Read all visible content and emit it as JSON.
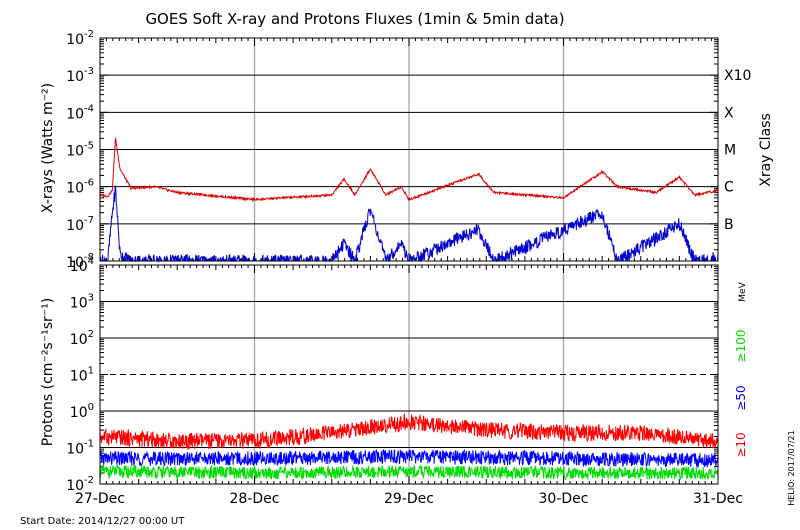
{
  "chart_data": [
    {
      "type": "line",
      "title": "GOES Soft X-ray and Protons Fluxes   (1min & 5min data)",
      "ylabel": "X-rays (Watts m⁻²)",
      "yscale": "log",
      "ylim": [
        1e-08,
        0.01
      ],
      "yticks": [
        {
          "base": "10",
          "exp": "-8"
        },
        {
          "base": "10",
          "exp": "-7"
        },
        {
          "base": "10",
          "exp": "-6"
        },
        {
          "base": "10",
          "exp": "-5"
        },
        {
          "base": "10",
          "exp": "-4"
        },
        {
          "base": "10",
          "exp": "-3"
        },
        {
          "base": "10",
          "exp": "-2"
        }
      ],
      "right_axis_label": "Xray Class",
      "xray_classes": [
        {
          "label": "B",
          "value": 1e-07
        },
        {
          "label": "C",
          "value": 1e-06
        },
        {
          "label": "M",
          "value": 1e-05
        },
        {
          "label": "X",
          "value": 0.0001
        },
        {
          "label": "X10",
          "value": 0.001
        }
      ],
      "x": [
        "2014-12-27",
        "2014-12-28",
        "2014-12-29",
        "2014-12-30",
        "2014-12-31"
      ],
      "series": [
        {
          "color": "#e00000",
          "points": [
            [
              0,
              6e-07
            ],
            [
              0.05,
              5.5e-07
            ],
            [
              0.08,
              8e-07
            ],
            [
              0.1,
              2e-05
            ],
            [
              0.13,
              3e-06
            ],
            [
              0.2,
              9e-07
            ],
            [
              0.35,
              1e-06
            ],
            [
              0.5,
              7e-07
            ],
            [
              1,
              4.5e-07
            ],
            [
              1.5,
              6e-07
            ],
            [
              1.58,
              1.6e-06
            ],
            [
              1.65,
              6e-07
            ],
            [
              1.75,
              3e-06
            ],
            [
              1.85,
              6e-07
            ],
            [
              1.95,
              1e-06
            ],
            [
              2,
              4.5e-07
            ],
            [
              2.2,
              9e-07
            ],
            [
              2.45,
              2.2e-06
            ],
            [
              2.55,
              7e-07
            ],
            [
              3,
              5e-07
            ],
            [
              3.25,
              2.5e-06
            ],
            [
              3.35,
              1e-06
            ],
            [
              3.6,
              7e-07
            ],
            [
              3.75,
              1.8e-06
            ],
            [
              3.85,
              6e-07
            ],
            [
              4,
              8e-07
            ]
          ]
        },
        {
          "color": "#0000d0",
          "points": [
            [
              0,
              1e-08
            ],
            [
              0.05,
              1e-08
            ],
            [
              0.08,
              2e-07
            ],
            [
              0.1,
              9e-07
            ],
            [
              0.13,
              1.5e-08
            ],
            [
              0.2,
              1e-08
            ],
            [
              0.75,
              1e-08
            ],
            [
              1.5,
              1e-08
            ],
            [
              1.58,
              3e-08
            ],
            [
              1.65,
              1e-08
            ],
            [
              1.75,
              2.5e-07
            ],
            [
              1.85,
              1e-08
            ],
            [
              1.95,
              3e-08
            ],
            [
              2,
              1e-08
            ],
            [
              2.45,
              7e-08
            ],
            [
              2.55,
              1e-08
            ],
            [
              3.25,
              2e-07
            ],
            [
              3.35,
              1e-08
            ],
            [
              3.6,
              4e-08
            ],
            [
              3.75,
              1e-07
            ],
            [
              3.85,
              1e-08
            ],
            [
              4,
              1.2e-08
            ]
          ]
        }
      ]
    },
    {
      "type": "line",
      "ylabel": "Protons (cm⁻²s⁻¹sr⁻¹)",
      "yscale": "log",
      "ylim": [
        0.01,
        10000
      ],
      "yticks": [
        {
          "base": "10",
          "exp": "-2"
        },
        {
          "base": "10",
          "exp": "-1"
        },
        {
          "base": "10",
          "exp": "0"
        },
        {
          "base": "10",
          "exp": "1"
        },
        {
          "base": "10",
          "exp": "2"
        },
        {
          "base": "10",
          "exp": "3"
        },
        {
          "base": "10",
          "exp": "4"
        }
      ],
      "threshold_line": 10,
      "x": [
        "2014-12-27",
        "2014-12-28",
        "2014-12-29",
        "2014-12-30",
        "2014-12-31"
      ],
      "xtick_labels": [
        "27-Dec",
        "28-Dec",
        "29-Dec",
        "30-Dec",
        "31-Dec"
      ],
      "energy_unit": "MeV",
      "series": [
        {
          "name": "≥10",
          "color": "#ff0000",
          "points": [
            [
              0,
              0.2
            ],
            [
              0.5,
              0.15
            ],
            [
              1,
              0.15
            ],
            [
              1.5,
              0.25
            ],
            [
              2,
              0.5
            ],
            [
              2.5,
              0.3
            ],
            [
              3,
              0.25
            ],
            [
              3.5,
              0.25
            ],
            [
              4,
              0.15
            ]
          ]
        },
        {
          "name": "≥50",
          "color": "#0000ff",
          "points": [
            [
              0,
              0.05
            ],
            [
              1,
              0.05
            ],
            [
              2,
              0.055
            ],
            [
              3,
              0.05
            ],
            [
              4,
              0.045
            ]
          ]
        },
        {
          "name": "≥100",
          "color": "#00dd00",
          "points": [
            [
              0,
              0.022
            ],
            [
              1,
              0.02
            ],
            [
              2,
              0.022
            ],
            [
              3,
              0.02
            ],
            [
              4,
              0.02
            ]
          ]
        }
      ]
    }
  ],
  "start_date": "Start Date: 2014/12/27 00:00 UT",
  "credit": "HELIO: 2017/07/21"
}
